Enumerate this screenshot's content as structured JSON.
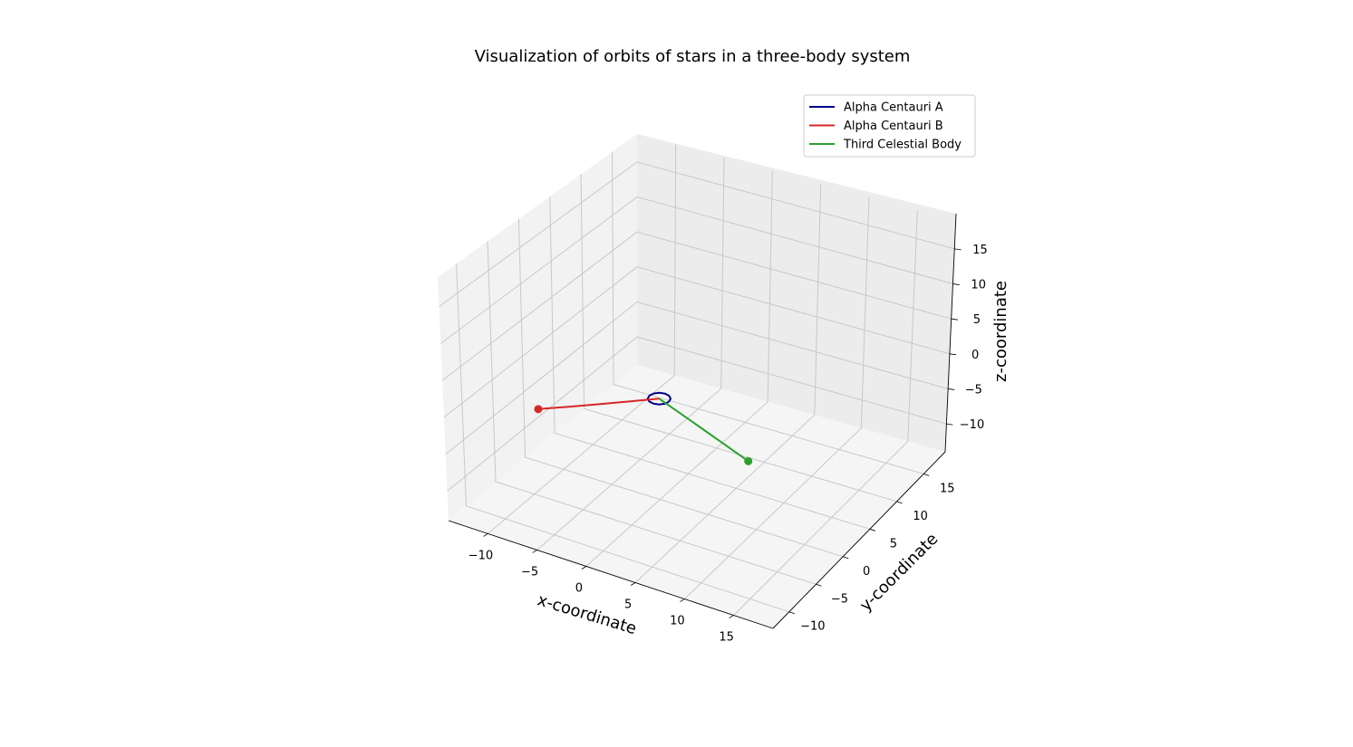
{
  "chart_data": {
    "type": "line",
    "projection": "3d",
    "title": "Visualization of orbits of stars in a three-body system",
    "xlabel": "x-coordinate",
    "ylabel": "y-coordinate",
    "zlabel": "z-coordinate",
    "xlim": [
      -14,
      19
    ],
    "ylim": [
      -13,
      19
    ],
    "zlim": [
      -14,
      19
    ],
    "xticks": [
      -10,
      -5,
      0,
      5,
      10,
      15
    ],
    "yticks": [
      -10,
      -5,
      0,
      5,
      10,
      15
    ],
    "zticks": [
      -10,
      -5,
      0,
      5,
      10,
      15
    ],
    "xtick_labels": [
      "−10",
      "−5",
      "0",
      "5",
      "10",
      "15"
    ],
    "ytick_labels": [
      "−10",
      "−5",
      "0",
      "5",
      "10",
      "15"
    ],
    "ztick_labels": [
      "−10",
      "−5",
      "0",
      "5",
      "10",
      "15"
    ],
    "grid": true,
    "legend_position": "top-right",
    "series": [
      {
        "name": "Alpha Centauri A",
        "color": "#00008b",
        "marker": "none",
        "points": [
          [
            1.0,
            0.0,
            0.0
          ],
          [
            0.87,
            0.5,
            0.0
          ],
          [
            0.5,
            0.87,
            0.0
          ],
          [
            0.0,
            1.0,
            0.0
          ],
          [
            -0.5,
            0.87,
            0.0
          ],
          [
            -0.87,
            0.5,
            0.0
          ],
          [
            -1.0,
            0.0,
            0.0
          ],
          [
            -0.87,
            -0.5,
            0.0
          ],
          [
            -0.5,
            -0.87,
            0.0
          ],
          [
            0.0,
            -1.0,
            0.0
          ],
          [
            0.5,
            -0.87,
            0.0
          ],
          [
            0.87,
            -0.5,
            0.0
          ],
          [
            1.0,
            0.0,
            0.0
          ]
        ]
      },
      {
        "name": "Alpha Centauri B",
        "color": "#d62728",
        "marker": "end",
        "points": [
          [
            0.0,
            0.0,
            0.0
          ],
          [
            -2.0,
            -1.8,
            0.0
          ],
          [
            -4.0,
            -3.6,
            0.0
          ],
          [
            -6.0,
            -5.4,
            0.0
          ],
          [
            -8.0,
            -7.2,
            0.0
          ]
        ]
      },
      {
        "name": "Third Celestial Body",
        "color": "#2ca02c",
        "marker": "end",
        "points": [
          [
            0.0,
            0.0,
            0.0
          ],
          [
            3.0,
            -1.25,
            0.0
          ],
          [
            6.0,
            -2.5,
            0.0
          ],
          [
            9.0,
            -3.75,
            0.0
          ],
          [
            12.0,
            -5.0,
            0.0
          ]
        ]
      }
    ]
  }
}
